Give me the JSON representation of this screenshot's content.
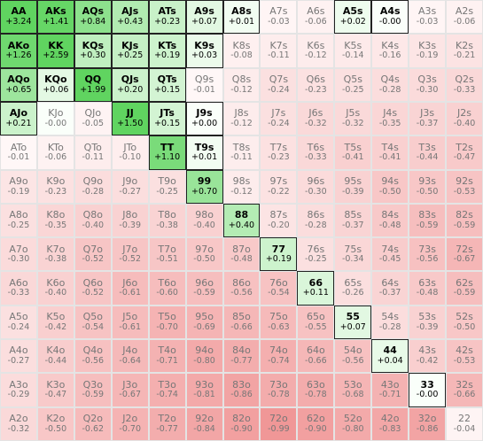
{
  "grid": {
    "rows": [
      [
        {
          "hand": "AA",
          "ev": "+3.24",
          "played": true
        },
        {
          "hand": "AKs",
          "ev": "+1.41",
          "played": true
        },
        {
          "hand": "AQs",
          "ev": "+0.84",
          "played": true
        },
        {
          "hand": "AJs",
          "ev": "+0.43",
          "played": true
        },
        {
          "hand": "ATs",
          "ev": "+0.23",
          "played": true
        },
        {
          "hand": "A9s",
          "ev": "+0.07",
          "played": true
        },
        {
          "hand": "A8s",
          "ev": "+0.01",
          "played": true
        },
        {
          "hand": "A7s",
          "ev": "-0.03",
          "played": false
        },
        {
          "hand": "A6s",
          "ev": "-0.06",
          "played": false
        },
        {
          "hand": "A5s",
          "ev": "+0.02",
          "played": true
        },
        {
          "hand": "A4s",
          "ev": "-0.00",
          "played": true
        },
        {
          "hand": "A3s",
          "ev": "-0.03",
          "played": false
        },
        {
          "hand": "A2s",
          "ev": "-0.06",
          "played": false
        }
      ],
      [
        {
          "hand": "AKo",
          "ev": "+1.26",
          "played": true
        },
        {
          "hand": "KK",
          "ev": "+2.59",
          "played": true
        },
        {
          "hand": "KQs",
          "ev": "+0.30",
          "played": true
        },
        {
          "hand": "KJs",
          "ev": "+0.25",
          "played": true
        },
        {
          "hand": "KTs",
          "ev": "+0.19",
          "played": true
        },
        {
          "hand": "K9s",
          "ev": "+0.03",
          "played": true
        },
        {
          "hand": "K8s",
          "ev": "-0.08",
          "played": false
        },
        {
          "hand": "K7s",
          "ev": "-0.11",
          "played": false
        },
        {
          "hand": "K6s",
          "ev": "-0.12",
          "played": false
        },
        {
          "hand": "K5s",
          "ev": "-0.14",
          "played": false
        },
        {
          "hand": "K4s",
          "ev": "-0.16",
          "played": false
        },
        {
          "hand": "K3s",
          "ev": "-0.19",
          "played": false
        },
        {
          "hand": "K2s",
          "ev": "-0.21",
          "played": false
        }
      ],
      [
        {
          "hand": "AQo",
          "ev": "+0.65",
          "played": true
        },
        {
          "hand": "KQo",
          "ev": "+0.06",
          "played": true
        },
        {
          "hand": "QQ",
          "ev": "+1.99",
          "played": true
        },
        {
          "hand": "QJs",
          "ev": "+0.20",
          "played": true
        },
        {
          "hand": "QTs",
          "ev": "+0.15",
          "played": true
        },
        {
          "hand": "Q9s",
          "ev": "-0.01",
          "played": false
        },
        {
          "hand": "Q8s",
          "ev": "-0.12",
          "played": false
        },
        {
          "hand": "Q7s",
          "ev": "-0.24",
          "played": false
        },
        {
          "hand": "Q6s",
          "ev": "-0.23",
          "played": false
        },
        {
          "hand": "Q5s",
          "ev": "-0.25",
          "played": false
        },
        {
          "hand": "Q4s",
          "ev": "-0.28",
          "played": false
        },
        {
          "hand": "Q3s",
          "ev": "-0.30",
          "played": false
        },
        {
          "hand": "Q2s",
          "ev": "-0.33",
          "played": false
        }
      ],
      [
        {
          "hand": "AJo",
          "ev": "+0.21",
          "played": true
        },
        {
          "hand": "KJo",
          "ev": "-0.00",
          "played": false
        },
        {
          "hand": "QJo",
          "ev": "-0.05",
          "played": false
        },
        {
          "hand": "JJ",
          "ev": "+1.50",
          "played": true
        },
        {
          "hand": "JTs",
          "ev": "+0.15",
          "played": true
        },
        {
          "hand": "J9s",
          "ev": "+0.00",
          "played": true
        },
        {
          "hand": "J8s",
          "ev": "-0.12",
          "played": false
        },
        {
          "hand": "J7s",
          "ev": "-0.24",
          "played": false
        },
        {
          "hand": "J6s",
          "ev": "-0.32",
          "played": false
        },
        {
          "hand": "J5s",
          "ev": "-0.32",
          "played": false
        },
        {
          "hand": "J4s",
          "ev": "-0.35",
          "played": false
        },
        {
          "hand": "J3s",
          "ev": "-0.37",
          "played": false
        },
        {
          "hand": "J2s",
          "ev": "-0.40",
          "played": false
        }
      ],
      [
        {
          "hand": "ATo",
          "ev": "-0.01",
          "played": false
        },
        {
          "hand": "KTo",
          "ev": "-0.06",
          "played": false
        },
        {
          "hand": "QTo",
          "ev": "-0.11",
          "played": false
        },
        {
          "hand": "JTo",
          "ev": "-0.10",
          "played": false
        },
        {
          "hand": "TT",
          "ev": "+1.10",
          "played": true
        },
        {
          "hand": "T9s",
          "ev": "+0.01",
          "played": true
        },
        {
          "hand": "T8s",
          "ev": "-0.11",
          "played": false
        },
        {
          "hand": "T7s",
          "ev": "-0.23",
          "played": false
        },
        {
          "hand": "T6s",
          "ev": "-0.33",
          "played": false
        },
        {
          "hand": "T5s",
          "ev": "-0.41",
          "played": false
        },
        {
          "hand": "T4s",
          "ev": "-0.41",
          "played": false
        },
        {
          "hand": "T3s",
          "ev": "-0.44",
          "played": false
        },
        {
          "hand": "T2s",
          "ev": "-0.47",
          "played": false
        }
      ],
      [
        {
          "hand": "A9o",
          "ev": "-0.19",
          "played": false
        },
        {
          "hand": "K9o",
          "ev": "-0.23",
          "played": false
        },
        {
          "hand": "Q9o",
          "ev": "-0.28",
          "played": false
        },
        {
          "hand": "J9o",
          "ev": "-0.27",
          "played": false
        },
        {
          "hand": "T9o",
          "ev": "-0.25",
          "played": false
        },
        {
          "hand": "99",
          "ev": "+0.70",
          "played": true
        },
        {
          "hand": "98s",
          "ev": "-0.12",
          "played": false
        },
        {
          "hand": "97s",
          "ev": "-0.22",
          "played": false
        },
        {
          "hand": "96s",
          "ev": "-0.30",
          "played": false
        },
        {
          "hand": "95s",
          "ev": "-0.39",
          "played": false
        },
        {
          "hand": "94s",
          "ev": "-0.50",
          "played": false
        },
        {
          "hand": "93s",
          "ev": "-0.50",
          "played": false
        },
        {
          "hand": "92s",
          "ev": "-0.53",
          "played": false
        }
      ],
      [
        {
          "hand": "A8o",
          "ev": "-0.25",
          "played": false
        },
        {
          "hand": "K8o",
          "ev": "-0.35",
          "played": false
        },
        {
          "hand": "Q8o",
          "ev": "-0.40",
          "played": false
        },
        {
          "hand": "J8o",
          "ev": "-0.39",
          "played": false
        },
        {
          "hand": "T8o",
          "ev": "-0.38",
          "played": false
        },
        {
          "hand": "98o",
          "ev": "-0.40",
          "played": false
        },
        {
          "hand": "88",
          "ev": "+0.40",
          "played": true
        },
        {
          "hand": "87s",
          "ev": "-0.20",
          "played": false
        },
        {
          "hand": "86s",
          "ev": "-0.28",
          "played": false
        },
        {
          "hand": "85s",
          "ev": "-0.37",
          "played": false
        },
        {
          "hand": "84s",
          "ev": "-0.48",
          "played": false
        },
        {
          "hand": "83s",
          "ev": "-0.59",
          "played": false
        },
        {
          "hand": "82s",
          "ev": "-0.59",
          "played": false
        }
      ],
      [
        {
          "hand": "A7o",
          "ev": "-0.30",
          "played": false
        },
        {
          "hand": "K7o",
          "ev": "-0.38",
          "played": false
        },
        {
          "hand": "Q7o",
          "ev": "-0.52",
          "played": false
        },
        {
          "hand": "J7o",
          "ev": "-0.52",
          "played": false
        },
        {
          "hand": "T7o",
          "ev": "-0.51",
          "played": false
        },
        {
          "hand": "97o",
          "ev": "-0.50",
          "played": false
        },
        {
          "hand": "87o",
          "ev": "-0.48",
          "played": false
        },
        {
          "hand": "77",
          "ev": "+0.19",
          "played": true
        },
        {
          "hand": "76s",
          "ev": "-0.25",
          "played": false
        },
        {
          "hand": "75s",
          "ev": "-0.34",
          "played": false
        },
        {
          "hand": "74s",
          "ev": "-0.45",
          "played": false
        },
        {
          "hand": "73s",
          "ev": "-0.56",
          "played": false
        },
        {
          "hand": "72s",
          "ev": "-0.67",
          "played": false
        }
      ],
      [
        {
          "hand": "A6o",
          "ev": "-0.33",
          "played": false
        },
        {
          "hand": "K6o",
          "ev": "-0.40",
          "played": false
        },
        {
          "hand": "Q6o",
          "ev": "-0.52",
          "played": false
        },
        {
          "hand": "J6o",
          "ev": "-0.61",
          "played": false
        },
        {
          "hand": "T6o",
          "ev": "-0.60",
          "played": false
        },
        {
          "hand": "96o",
          "ev": "-0.59",
          "played": false
        },
        {
          "hand": "86o",
          "ev": "-0.56",
          "played": false
        },
        {
          "hand": "76o",
          "ev": "-0.54",
          "played": false
        },
        {
          "hand": "66",
          "ev": "+0.11",
          "played": true
        },
        {
          "hand": "65s",
          "ev": "-0.26",
          "played": false
        },
        {
          "hand": "64s",
          "ev": "-0.37",
          "played": false
        },
        {
          "hand": "63s",
          "ev": "-0.48",
          "played": false
        },
        {
          "hand": "62s",
          "ev": "-0.59",
          "played": false
        }
      ],
      [
        {
          "hand": "A5o",
          "ev": "-0.24",
          "played": false
        },
        {
          "hand": "K5o",
          "ev": "-0.42",
          "played": false
        },
        {
          "hand": "Q5o",
          "ev": "-0.54",
          "played": false
        },
        {
          "hand": "J5o",
          "ev": "-0.61",
          "played": false
        },
        {
          "hand": "T5o",
          "ev": "-0.70",
          "played": false
        },
        {
          "hand": "95o",
          "ev": "-0.69",
          "played": false
        },
        {
          "hand": "85o",
          "ev": "-0.66",
          "played": false
        },
        {
          "hand": "75o",
          "ev": "-0.63",
          "played": false
        },
        {
          "hand": "65o",
          "ev": "-0.55",
          "played": false
        },
        {
          "hand": "55",
          "ev": "+0.07",
          "played": true
        },
        {
          "hand": "54s",
          "ev": "-0.28",
          "played": false
        },
        {
          "hand": "53s",
          "ev": "-0.39",
          "played": false
        },
        {
          "hand": "52s",
          "ev": "-0.50",
          "played": false
        }
      ],
      [
        {
          "hand": "A4o",
          "ev": "-0.27",
          "played": false
        },
        {
          "hand": "K4o",
          "ev": "-0.44",
          "played": false
        },
        {
          "hand": "Q4o",
          "ev": "-0.56",
          "played": false
        },
        {
          "hand": "J4o",
          "ev": "-0.64",
          "played": false
        },
        {
          "hand": "T4o",
          "ev": "-0.71",
          "played": false
        },
        {
          "hand": "94o",
          "ev": "-0.80",
          "played": false
        },
        {
          "hand": "84o",
          "ev": "-0.77",
          "played": false
        },
        {
          "hand": "74o",
          "ev": "-0.74",
          "played": false
        },
        {
          "hand": "64o",
          "ev": "-0.66",
          "played": false
        },
        {
          "hand": "54o",
          "ev": "-0.56",
          "played": false
        },
        {
          "hand": "44",
          "ev": "+0.04",
          "played": true
        },
        {
          "hand": "43s",
          "ev": "-0.42",
          "played": false
        },
        {
          "hand": "42s",
          "ev": "-0.53",
          "played": false
        }
      ],
      [
        {
          "hand": "A3o",
          "ev": "-0.29",
          "played": false
        },
        {
          "hand": "K3o",
          "ev": "-0.47",
          "played": false
        },
        {
          "hand": "Q3o",
          "ev": "-0.59",
          "played": false
        },
        {
          "hand": "J3o",
          "ev": "-0.67",
          "played": false
        },
        {
          "hand": "T3o",
          "ev": "-0.74",
          "played": false
        },
        {
          "hand": "93o",
          "ev": "-0.81",
          "played": false
        },
        {
          "hand": "83o",
          "ev": "-0.86",
          "played": false
        },
        {
          "hand": "73o",
          "ev": "-0.78",
          "played": false
        },
        {
          "hand": "63o",
          "ev": "-0.78",
          "played": false
        },
        {
          "hand": "53o",
          "ev": "-0.68",
          "played": false
        },
        {
          "hand": "43o",
          "ev": "-0.71",
          "played": false
        },
        {
          "hand": "33",
          "ev": "-0.00",
          "played": true
        },
        {
          "hand": "32s",
          "ev": "-0.66",
          "played": false
        }
      ],
      [
        {
          "hand": "A2o",
          "ev": "-0.32",
          "played": false
        },
        {
          "hand": "K2o",
          "ev": "-0.50",
          "played": false
        },
        {
          "hand": "Q2o",
          "ev": "-0.62",
          "played": false
        },
        {
          "hand": "J2o",
          "ev": "-0.70",
          "played": false
        },
        {
          "hand": "T2o",
          "ev": "-0.77",
          "played": false
        },
        {
          "hand": "92o",
          "ev": "-0.84",
          "played": false
        },
        {
          "hand": "82o",
          "ev": "-0.90",
          "played": false
        },
        {
          "hand": "72o",
          "ev": "-0.99",
          "played": false
        },
        {
          "hand": "62o",
          "ev": "-0.90",
          "played": false
        },
        {
          "hand": "52o",
          "ev": "-0.80",
          "played": false
        },
        {
          "hand": "42o",
          "ev": "-0.83",
          "played": false
        },
        {
          "hand": "32o",
          "ev": "-0.86",
          "played": false
        },
        {
          "hand": "22",
          "ev": "-0.04",
          "played": false
        }
      ]
    ]
  }
}
